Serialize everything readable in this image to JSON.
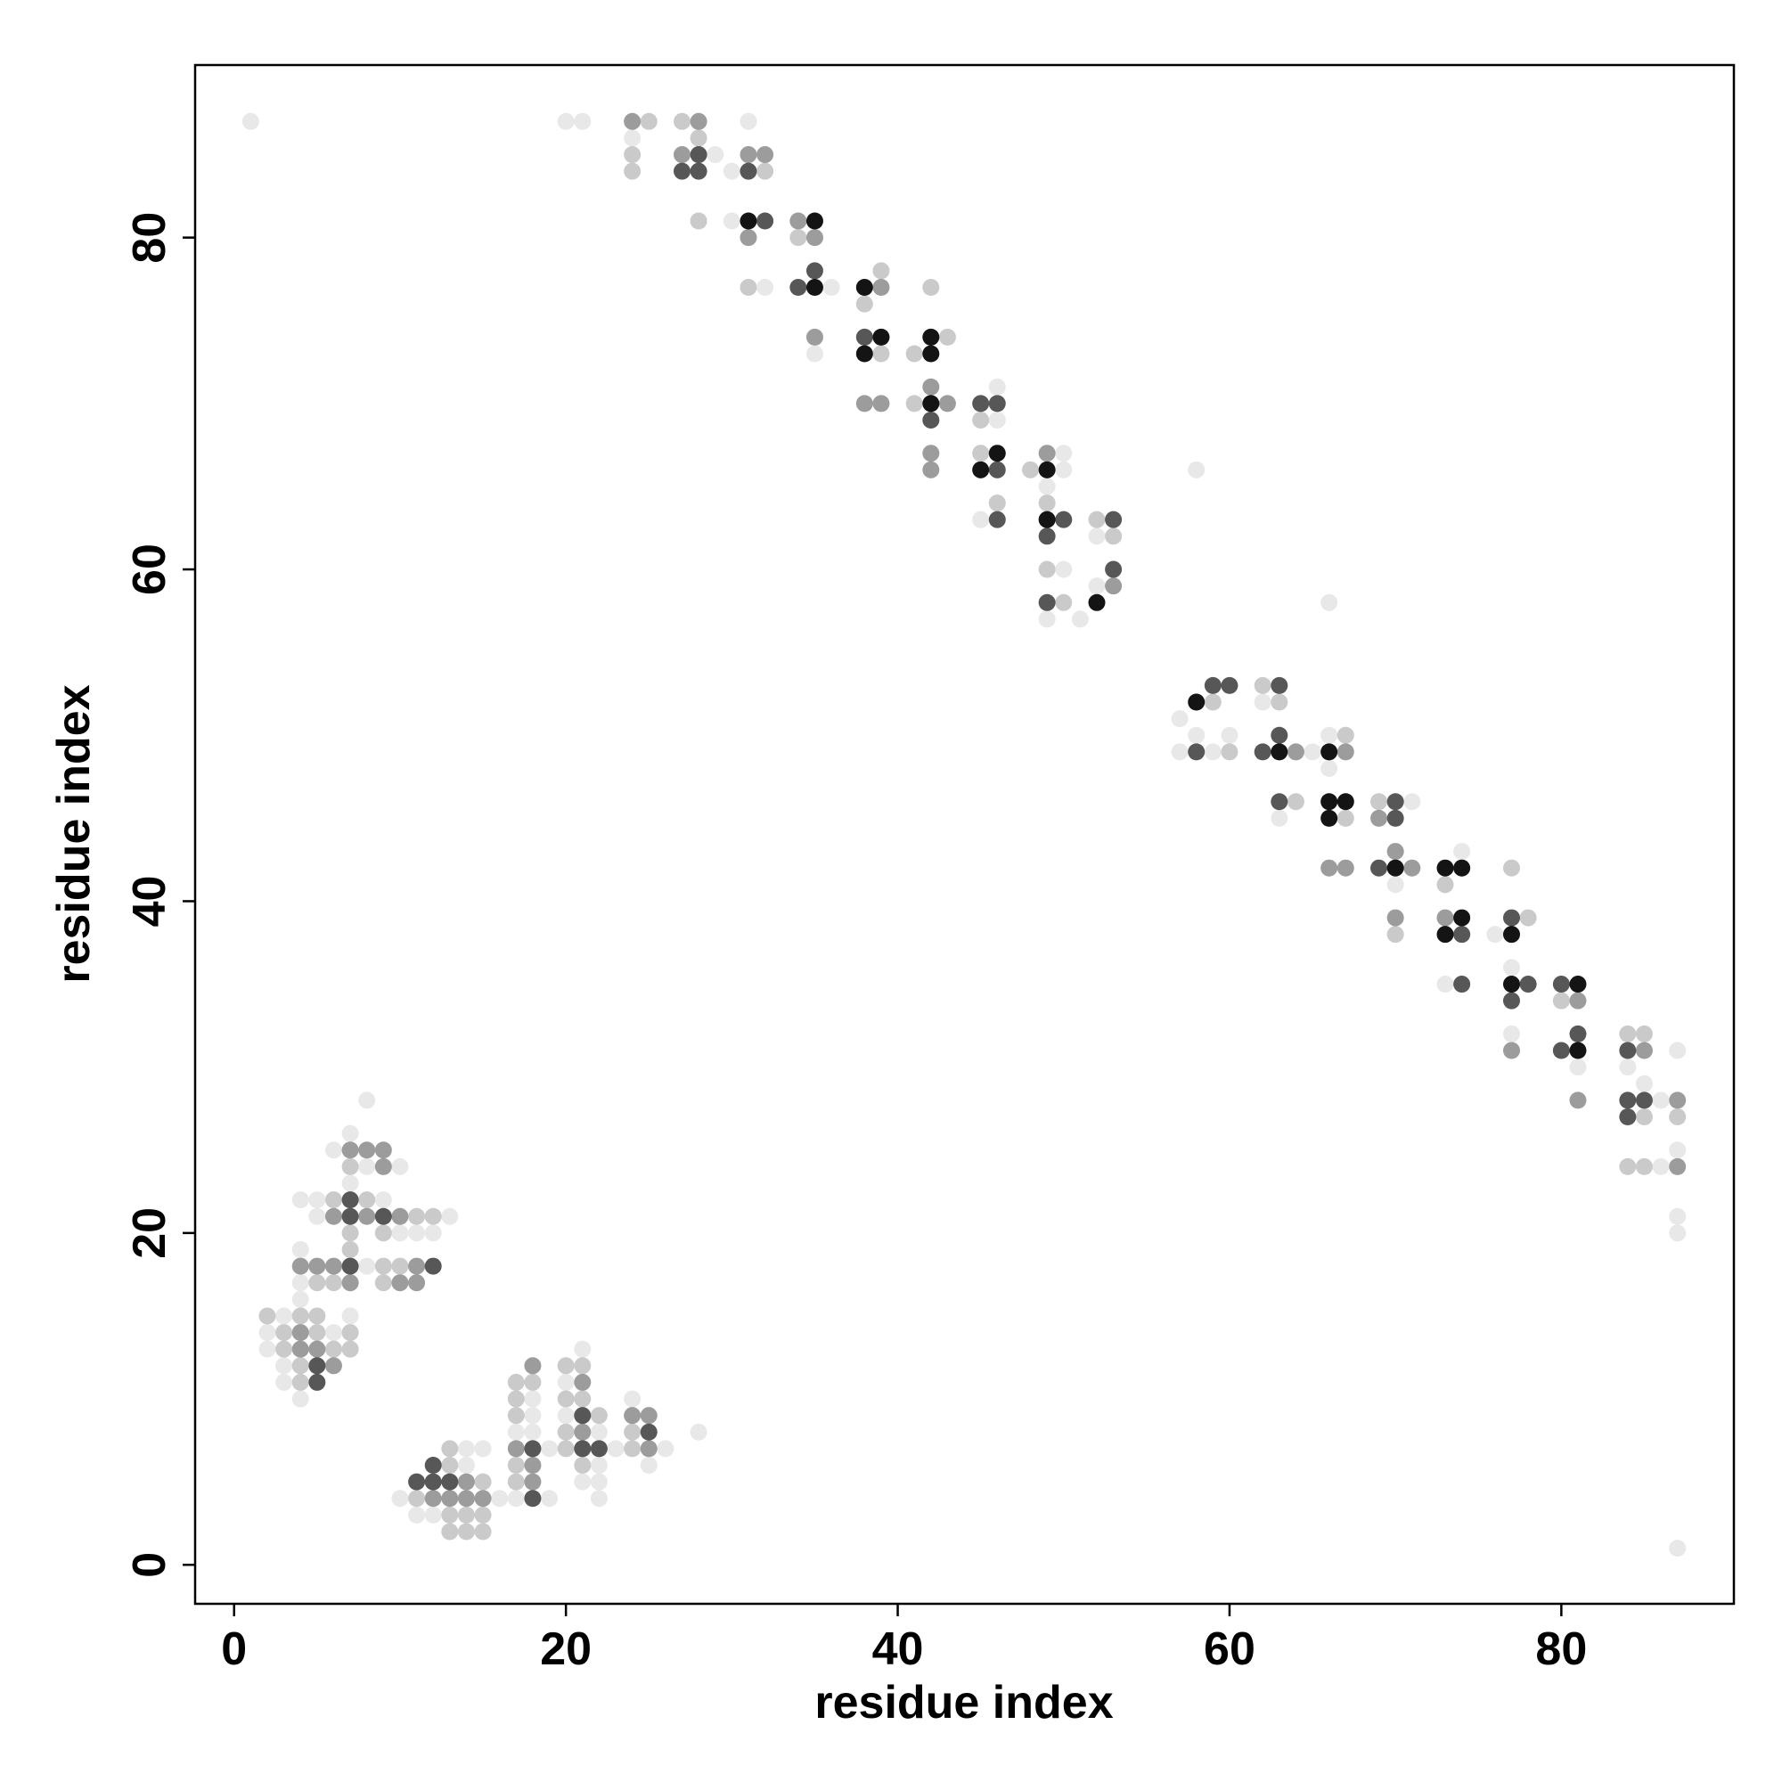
{
  "chart_data": {
    "type": "scatter",
    "xlabel": "residue index",
    "ylabel": "residue index",
    "xlim": [
      -2.35,
      90.4
    ],
    "ylim": [
      -2.35,
      90.4
    ],
    "xticks": [
      0,
      20,
      40,
      60,
      80
    ],
    "yticks": [
      0,
      20,
      40,
      60,
      80
    ],
    "series": [
      {
        "color": "#e8e8e8",
        "x": [
          1,
          20,
          21,
          31,
          24,
          29,
          30,
          30,
          32,
          36,
          35,
          46,
          46,
          50,
          50,
          58,
          49,
          45,
          52,
          50,
          52,
          66,
          49,
          51,
          62,
          57,
          58,
          60,
          66,
          57,
          59,
          65,
          66,
          71,
          63,
          74,
          70,
          76,
          77,
          73,
          77,
          87,
          81,
          84,
          85,
          86,
          87,
          86,
          87,
          87,
          87,
          8,
          7,
          6,
          8,
          10,
          7,
          4,
          5,
          9,
          5,
          13,
          10,
          11,
          12,
          4,
          8,
          4,
          4,
          3,
          7,
          2,
          6,
          2,
          3,
          3,
          4,
          21,
          20,
          18,
          24,
          18,
          20,
          17,
          18,
          22,
          28,
          14,
          15,
          19,
          23,
          26,
          14,
          22,
          25,
          21,
          22,
          10,
          16,
          17,
          19,
          22,
          11,
          12
        ],
        "values": [
          87,
          87,
          87,
          87,
          86,
          85,
          84,
          81,
          77,
          77,
          73,
          71,
          69,
          67,
          66,
          66,
          65,
          63,
          62,
          60,
          59,
          58,
          57,
          57,
          52,
          51,
          50,
          50,
          50,
          49,
          49,
          49,
          48,
          46,
          45,
          43,
          41,
          38,
          36,
          35,
          32,
          31,
          30,
          30,
          29,
          28,
          25,
          24,
          21,
          20,
          1,
          28,
          26,
          25,
          24,
          24,
          23,
          22,
          22,
          22,
          21,
          21,
          20,
          20,
          20,
          19,
          18,
          17,
          16,
          15,
          15,
          14,
          14,
          13,
          12,
          11,
          10,
          13,
          11,
          10,
          10,
          9,
          9,
          8,
          8,
          8,
          8,
          7,
          7,
          7,
          7,
          7,
          6,
          6,
          6,
          5,
          5,
          4,
          4,
          4,
          4,
          4,
          3,
          3
        ]
      },
      {
        "color": "#cacaca",
        "x": [
          25,
          27,
          28,
          24,
          24,
          32,
          28,
          34,
          39,
          31,
          42,
          38,
          43,
          39,
          41,
          41,
          45,
          45,
          48,
          46,
          49,
          52,
          53,
          49,
          50,
          62,
          59,
          63,
          67,
          60,
          64,
          69,
          67,
          77,
          73,
          78,
          70,
          80,
          84,
          85,
          85,
          87,
          84,
          85,
          7,
          6,
          8,
          11,
          12,
          7,
          9,
          7,
          9,
          10,
          5,
          6,
          9,
          2,
          4,
          5,
          3,
          5,
          7,
          3,
          6,
          7,
          4,
          4,
          20,
          21,
          17,
          18,
          17,
          20,
          21,
          17,
          22,
          20,
          24,
          13,
          20,
          24,
          13,
          17,
          21,
          15,
          17,
          11,
          13,
          14,
          15,
          13,
          14,
          15
        ],
        "values": [
          87,
          87,
          86,
          85,
          84,
          84,
          81,
          80,
          78,
          77,
          77,
          76,
          74,
          73,
          73,
          70,
          69,
          67,
          66,
          64,
          64,
          63,
          62,
          60,
          58,
          53,
          52,
          52,
          50,
          49,
          46,
          46,
          45,
          42,
          41,
          39,
          38,
          34,
          32,
          32,
          27,
          27,
          24,
          24,
          24,
          22,
          22,
          21,
          21,
          20,
          20,
          19,
          18,
          18,
          17,
          17,
          17,
          15,
          15,
          15,
          14,
          14,
          14,
          13,
          13,
          13,
          12,
          11,
          12,
          12,
          11,
          11,
          10,
          10,
          10,
          9,
          9,
          8,
          8,
          7,
          7,
          7,
          6,
          6,
          6,
          5,
          5,
          4,
          3,
          3,
          3,
          2,
          2,
          2
        ]
      },
      {
        "color": "#9c9c9c",
        "x": [
          24,
          28,
          27,
          31,
          32,
          34,
          31,
          35,
          39,
          35,
          42,
          38,
          39,
          43,
          42,
          49,
          42,
          53,
          66,
          67,
          64,
          67,
          69,
          70,
          71,
          70,
          73,
          81,
          77,
          85,
          81,
          87,
          87,
          7,
          8,
          9,
          9,
          6,
          8,
          10,
          4,
          5,
          6,
          11,
          7,
          10,
          11,
          4,
          4,
          5,
          6,
          18,
          21,
          24,
          25,
          21,
          17,
          25,
          18,
          14,
          18,
          12,
          13,
          14,
          15
        ],
        "values": [
          87,
          87,
          85,
          85,
          85,
          81,
          80,
          80,
          77,
          74,
          71,
          70,
          70,
          70,
          67,
          67,
          66,
          59,
          42,
          42,
          49,
          49,
          45,
          43,
          42,
          39,
          39,
          34,
          31,
          31,
          28,
          28,
          24,
          25,
          25,
          25,
          24,
          21,
          21,
          21,
          18,
          18,
          18,
          18,
          17,
          17,
          17,
          14,
          13,
          13,
          12,
          12,
          11,
          9,
          9,
          8,
          7,
          7,
          6,
          5,
          5,
          4,
          4,
          4,
          4
        ]
      },
      {
        "color": "#575757",
        "x": [
          28,
          27,
          28,
          31,
          32,
          35,
          34,
          38,
          42,
          45,
          46,
          46,
          46,
          50,
          53,
          49,
          53,
          49,
          59,
          60,
          63,
          63,
          58,
          62,
          63,
          70,
          70,
          69,
          77,
          74,
          74,
          78,
          80,
          77,
          81,
          80,
          84,
          84,
          85,
          84,
          7,
          7,
          9,
          7,
          12,
          5,
          5,
          21,
          25,
          18,
          21,
          22,
          12,
          11,
          12,
          13,
          18
        ],
        "values": [
          85,
          84,
          84,
          84,
          81,
          78,
          77,
          74,
          69,
          70,
          70,
          66,
          63,
          63,
          63,
          62,
          60,
          58,
          53,
          53,
          53,
          50,
          49,
          49,
          46,
          46,
          45,
          42,
          39,
          38,
          35,
          35,
          35,
          34,
          32,
          31,
          31,
          28,
          28,
          27,
          22,
          21,
          21,
          18,
          18,
          12,
          11,
          9,
          8,
          7,
          7,
          7,
          6,
          5,
          5,
          5,
          4
        ]
      },
      {
        "color": "#141414",
        "x": [
          31,
          35,
          35,
          38,
          39,
          42,
          38,
          42,
          42,
          46,
          45,
          49,
          49,
          52,
          58,
          63,
          66,
          66,
          67,
          66,
          70,
          73,
          74,
          74,
          73,
          77,
          77,
          81,
          81
        ],
        "values": [
          81,
          81,
          77,
          77,
          74,
          74,
          73,
          73,
          70,
          67,
          66,
          66,
          63,
          58,
          52,
          49,
          49,
          46,
          46,
          45,
          42,
          42,
          42,
          39,
          38,
          38,
          35,
          35,
          31
        ]
      }
    ]
  }
}
